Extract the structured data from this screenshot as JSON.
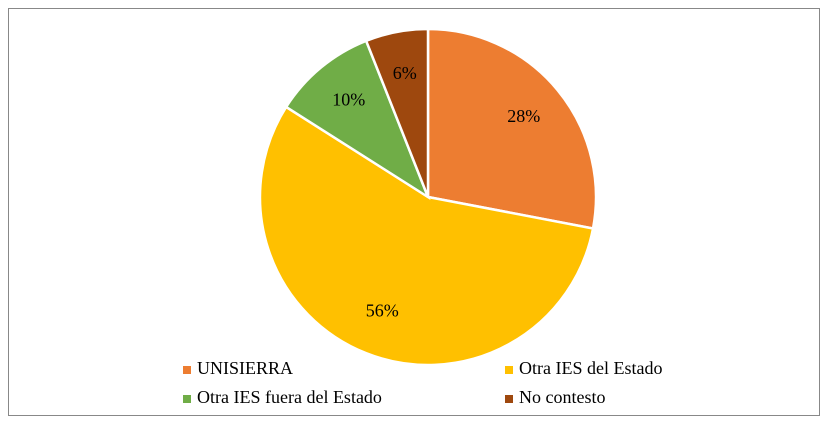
{
  "chart_data": {
    "type": "pie",
    "categories": [
      "UNISIERRA",
      "Otra IES del Estado",
      "Otra IES fuera del Estado",
      "No contesto"
    ],
    "values": [
      28,
      56,
      10,
      6
    ],
    "value_labels": [
      "28%",
      "56%",
      "10%",
      "6%"
    ],
    "colors": [
      "#ed7d31",
      "#ffc000",
      "#70ad47",
      "#9e480e"
    ],
    "legend": "bottom"
  }
}
